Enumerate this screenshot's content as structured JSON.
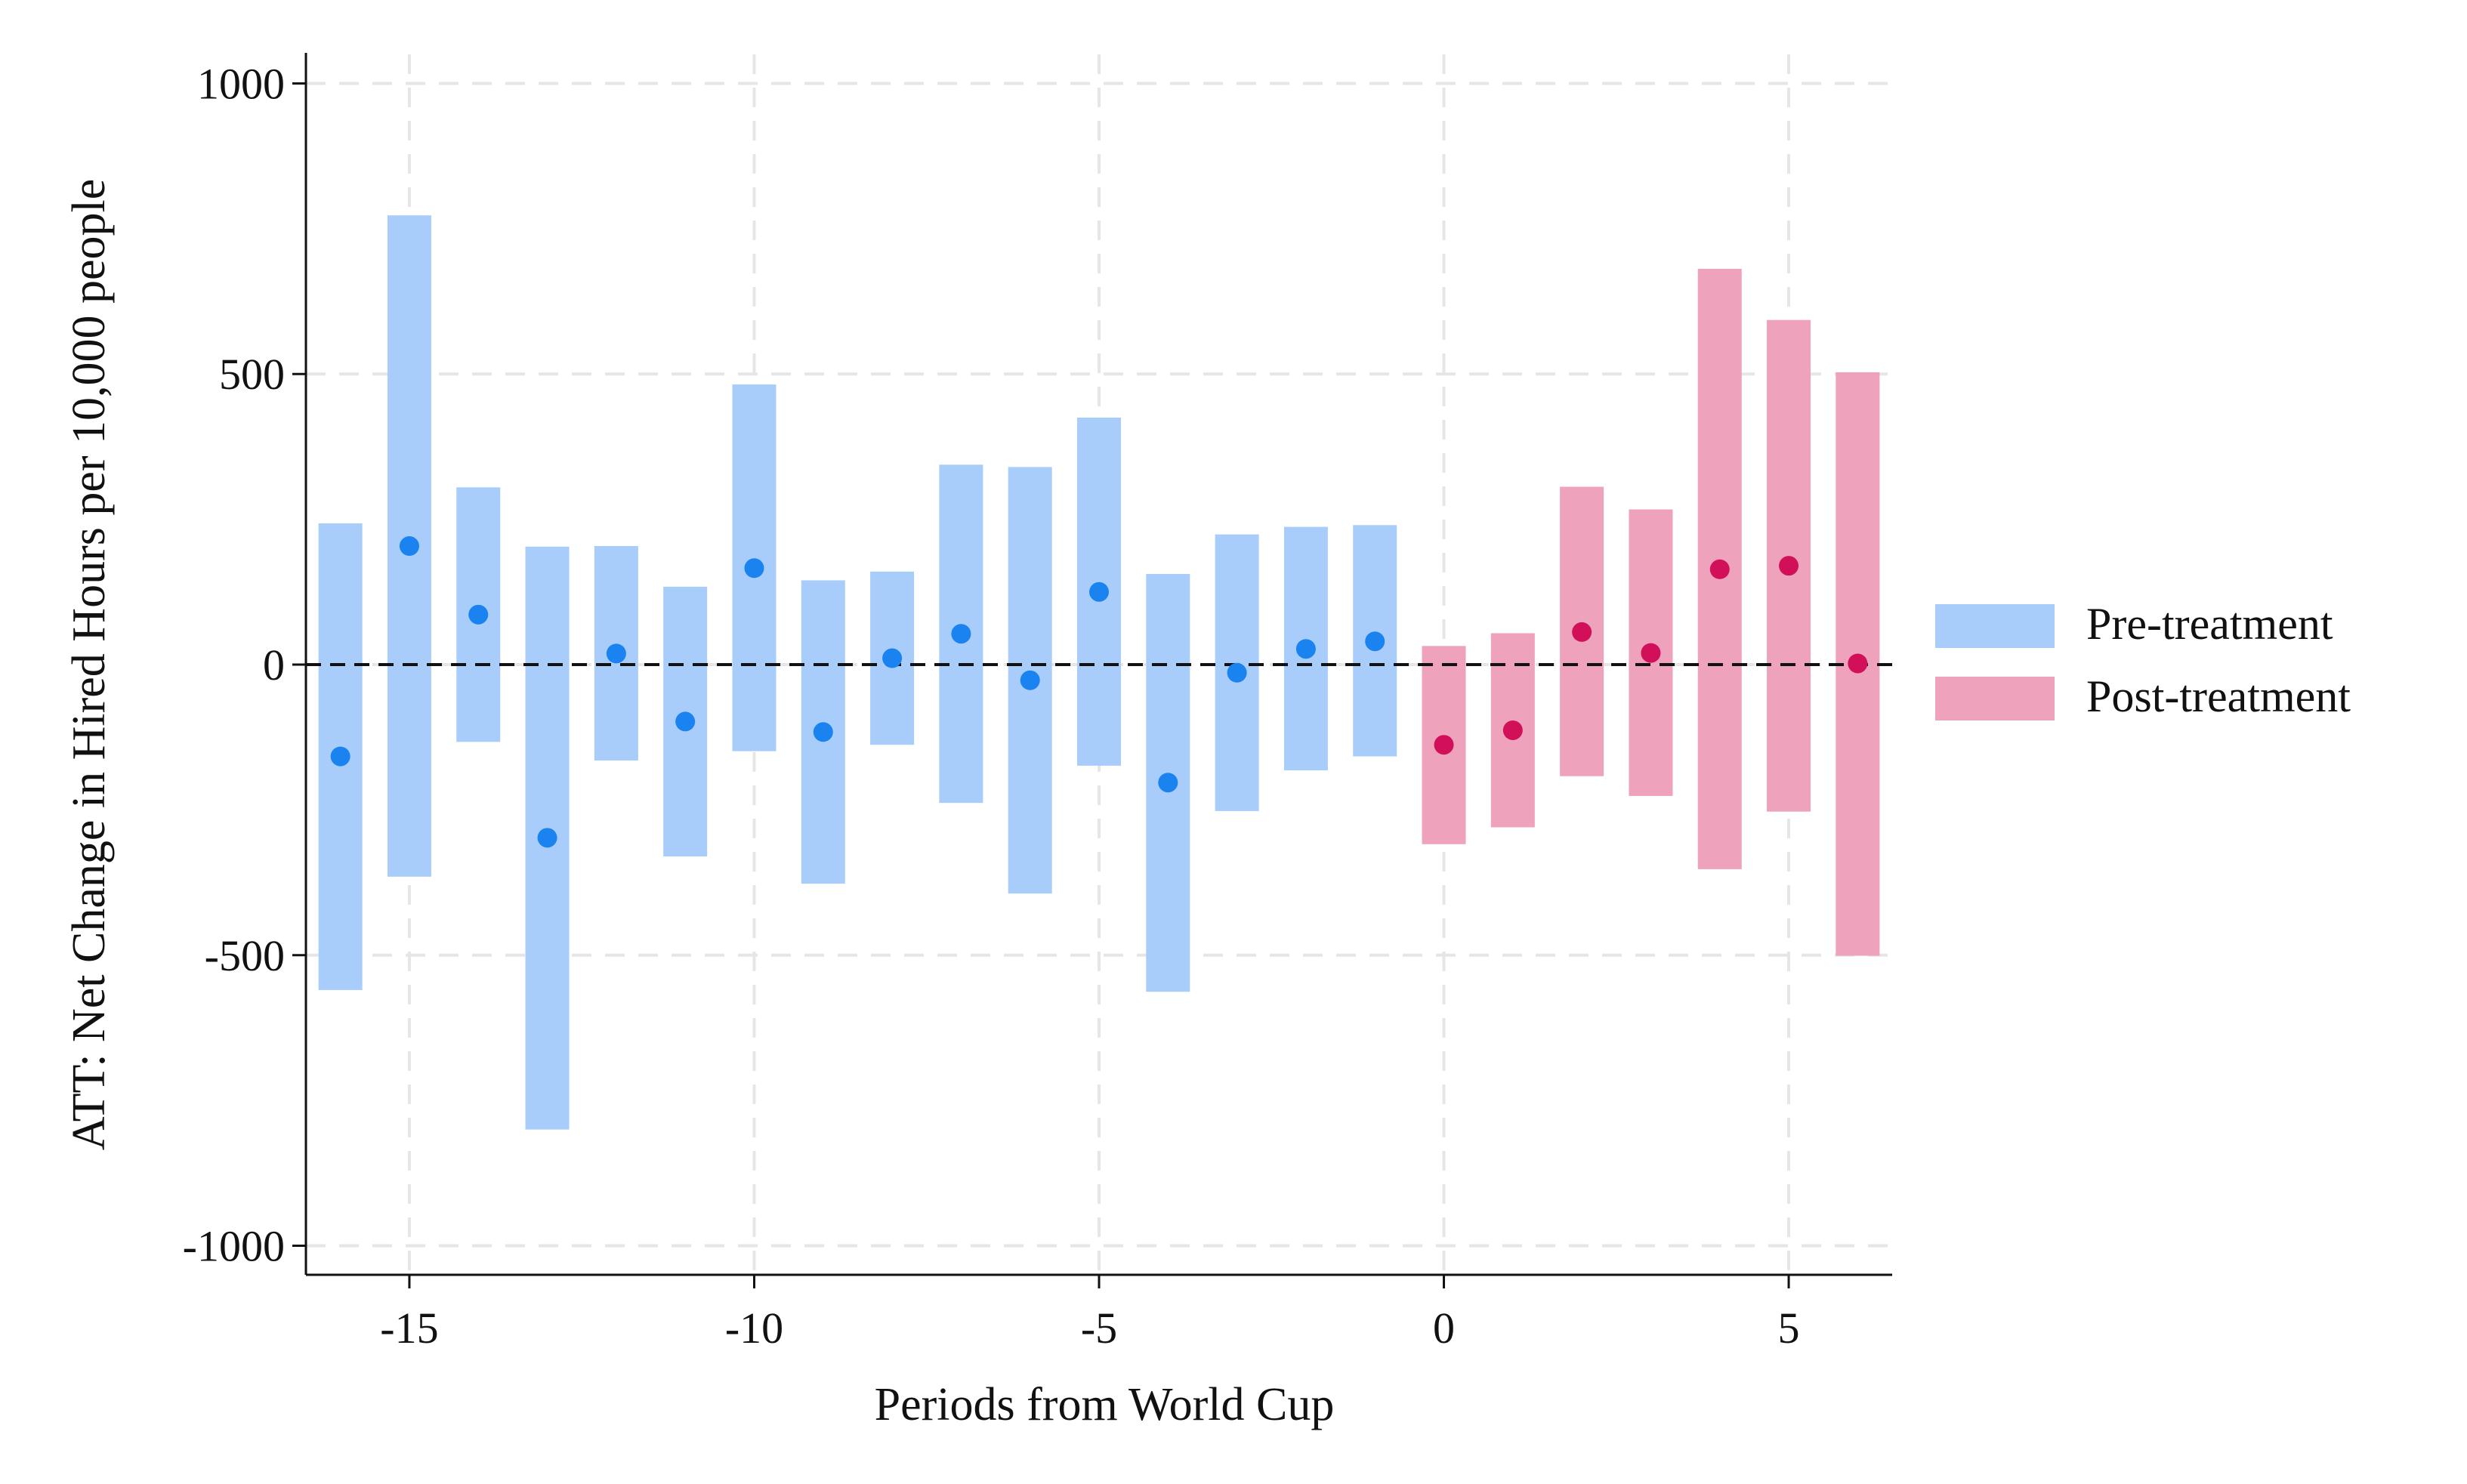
{
  "chart_data": {
    "type": "scatter",
    "title": "",
    "xlabel": "Periods from World Cup",
    "ylabel": "ATT: Net Change in Hired Hours per 10,000 people",
    "xlim": [
      -16.5,
      6.5
    ],
    "ylim": [
      -1050,
      1050
    ],
    "xticks": [
      -15,
      -10,
      -5,
      0,
      5
    ],
    "xtick_labels": [
      "-15",
      "-10",
      "-5",
      "0",
      "5"
    ],
    "yticks": [
      1000,
      500,
      0,
      -500,
      -1000
    ],
    "ytick_labels": [
      "1000",
      "500",
      "0",
      "-500",
      "-1000"
    ],
    "grid": true,
    "reference_line_y": 0,
    "legend_position": "right",
    "series": [
      {
        "name": "Pre-treatment",
        "color": "#1a83f0",
        "band_color": "#a8cdfb",
        "points": [
          {
            "x": -16,
            "y": -158,
            "lo": -560,
            "hi": 243
          },
          {
            "x": -15,
            "y": 204,
            "lo": -365,
            "hi": 773
          },
          {
            "x": -14,
            "y": 86,
            "lo": -133,
            "hi": 305
          },
          {
            "x": -13,
            "y": -298,
            "lo": -800,
            "hi": 203
          },
          {
            "x": -12,
            "y": 19,
            "lo": -165,
            "hi": 204
          },
          {
            "x": -11,
            "y": -98,
            "lo": -330,
            "hi": 134
          },
          {
            "x": -10,
            "y": 166,
            "lo": -149,
            "hi": 482
          },
          {
            "x": -9,
            "y": -116,
            "lo": -377,
            "hi": 145
          },
          {
            "x": -8,
            "y": 11,
            "lo": -138,
            "hi": 160
          },
          {
            "x": -7,
            "y": 53,
            "lo": -238,
            "hi": 344
          },
          {
            "x": -6,
            "y": -27,
            "lo": -394,
            "hi": 340
          },
          {
            "x": -5,
            "y": 125,
            "lo": -174,
            "hi": 425
          },
          {
            "x": -4,
            "y": -203,
            "lo": -563,
            "hi": 156
          },
          {
            "x": -3,
            "y": -14,
            "lo": -252,
            "hi": 224
          },
          {
            "x": -2,
            "y": 27,
            "lo": -182,
            "hi": 237
          },
          {
            "x": -1,
            "y": 40,
            "lo": -158,
            "hi": 240
          }
        ]
      },
      {
        "name": "Post-treatment",
        "color": "#d2105a",
        "band_color": "#eea2bb",
        "points": [
          {
            "x": 0,
            "y": -138,
            "lo": -309,
            "hi": 32
          },
          {
            "x": 1,
            "y": -113,
            "lo": -280,
            "hi": 54
          },
          {
            "x": 2,
            "y": 56,
            "lo": -192,
            "hi": 306
          },
          {
            "x": 3,
            "y": 20,
            "lo": -226,
            "hi": 267
          },
          {
            "x": 4,
            "y": 164,
            "lo": -352,
            "hi": 681
          },
          {
            "x": 5,
            "y": 170,
            "lo": -253,
            "hi": 593
          },
          {
            "x": 6,
            "y": 2,
            "lo": -501,
            "hi": 503
          }
        ]
      }
    ]
  }
}
